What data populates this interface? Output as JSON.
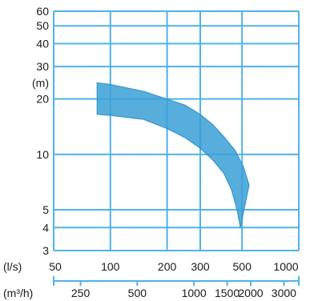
{
  "chart_data": {
    "type": "area",
    "title": "",
    "ylabel": "(m)",
    "y_scale": "log",
    "ylim": [
      3,
      60
    ],
    "y_ticks": [
      3,
      4,
      5,
      10,
      20,
      30,
      40,
      50,
      60
    ],
    "x_scale": "log",
    "xlim": [
      50,
      1000
    ],
    "x_unit_primary": "(l/s)",
    "x_ticks_primary": [
      50,
      100,
      200,
      300,
      500,
      1000
    ],
    "x_unit_secondary": "(m³/h)",
    "x_ticks_secondary": [
      250,
      500,
      1000,
      1500,
      2000,
      3000
    ],
    "grid": true,
    "band": {
      "upper": [
        {
          "x": 85,
          "y": 24.5
        },
        {
          "x": 100,
          "y": 24
        },
        {
          "x": 150,
          "y": 22
        },
        {
          "x": 200,
          "y": 20
        },
        {
          "x": 250,
          "y": 18.5
        },
        {
          "x": 300,
          "y": 16.5
        },
        {
          "x": 350,
          "y": 14.5
        },
        {
          "x": 400,
          "y": 12.5
        },
        {
          "x": 460,
          "y": 10.5
        },
        {
          "x": 510,
          "y": 8.5
        },
        {
          "x": 545,
          "y": 6.8
        }
      ],
      "lower": [
        {
          "x": 85,
          "y": 16.5
        },
        {
          "x": 100,
          "y": 16.3
        },
        {
          "x": 150,
          "y": 15.5
        },
        {
          "x": 200,
          "y": 13.8
        },
        {
          "x": 250,
          "y": 12.3
        },
        {
          "x": 300,
          "y": 10.8
        },
        {
          "x": 350,
          "y": 9.3
        },
        {
          "x": 400,
          "y": 7.9
        },
        {
          "x": 440,
          "y": 6.4
        },
        {
          "x": 470,
          "y": 5.0
        },
        {
          "x": 490,
          "y": 4.0
        }
      ]
    },
    "colors": {
      "grid": "#4fb3e8",
      "band": "#3aa0d6",
      "band_stroke": "#2f8fc4",
      "frame": "#4fb3e8",
      "text": "#1a1a1a",
      "axis": "#4fb3e8"
    }
  }
}
